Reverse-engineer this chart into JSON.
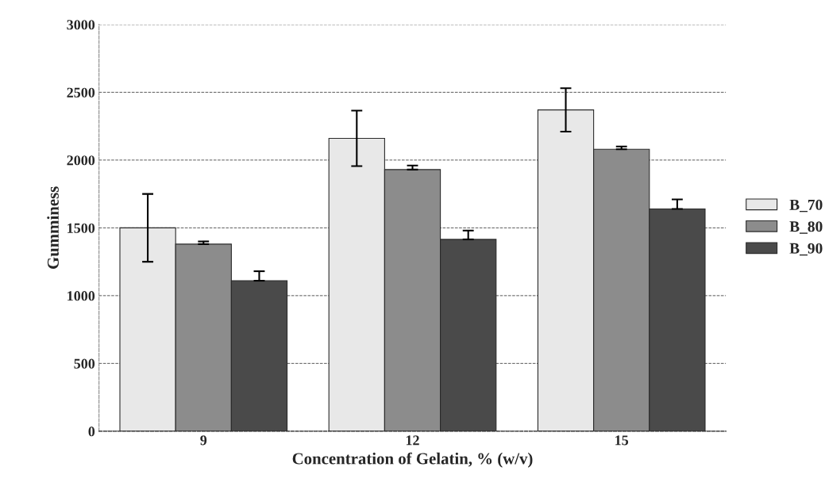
{
  "chart_data": {
    "type": "bar",
    "xlabel": "Concentration of Gelatin, % (w/v)",
    "ylabel": "Gumminess",
    "categories": [
      "9",
      "12",
      "15"
    ],
    "series": [
      {
        "name": "B_70",
        "color": "#e8e8e8",
        "values": [
          1500,
          2160,
          2370
        ],
        "errors": [
          250,
          205,
          160
        ]
      },
      {
        "name": "B_80",
        "color": "#8c8c8c",
        "values": [
          1380,
          1930,
          2080
        ],
        "errors": [
          [
            1380,
            1400
          ],
          [
            1930,
            1960
          ],
          [
            2080,
            2100
          ]
        ]
      },
      {
        "name": "B_90",
        "color": "#4a4a4a",
        "values": [
          1110,
          1415,
          1640
        ],
        "errors": [
          [
            1110,
            1180
          ],
          [
            1415,
            1480
          ],
          [
            1640,
            1710
          ]
        ]
      }
    ],
    "ylim": [
      0,
      3000
    ],
    "yticks": [
      0,
      500,
      1000,
      1500,
      2000,
      2500,
      3000
    ],
    "grid": "y",
    "legend": "right"
  }
}
